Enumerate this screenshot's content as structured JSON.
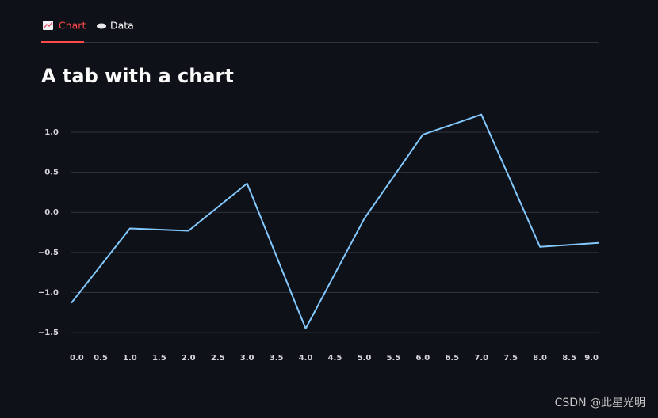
{
  "tabs": [
    "Chart",
    "Data"
  ],
  "chart_data": {
    "type": "line",
    "title": "A tab with a chart",
    "x": [
      0,
      1,
      2,
      3,
      4,
      5,
      6,
      7,
      8,
      9
    ],
    "values": [
      -1.13,
      -0.2,
      -0.23,
      0.36,
      -1.45,
      -0.08,
      0.97,
      1.22,
      -0.43,
      -0.38
    ],
    "color": "#83c9ff",
    "xlim": [
      0,
      9
    ],
    "xticks": [
      {
        "value": 0,
        "label": "0.0"
      },
      0.5,
      {
        "value": 1,
        "label": "1.0"
      },
      1.5,
      {
        "value": 2,
        "label": "2.0"
      },
      2.5,
      {
        "value": 3,
        "label": "3.0"
      },
      3.5,
      {
        "value": 4,
        "label": "4.0"
      },
      4.5,
      {
        "value": 5,
        "label": "5.0"
      },
      5.5,
      {
        "value": 6,
        "label": "6.0"
      },
      6.5,
      {
        "value": 7,
        "label": "7.0"
      },
      7.5,
      {
        "value": 8,
        "label": "8.0"
      },
      8.5,
      {
        "value": 9,
        "label": "9.0"
      }
    ],
    "ylim": [
      -1.6,
      1.3
    ],
    "yticks": [
      {
        "value": -1.5,
        "label": "−1.5"
      },
      {
        "value": -1,
        "label": "−1.0"
      },
      {
        "value": -0.5,
        "label": "−0.5"
      },
      {
        "value": 0,
        "label": "0.0"
      },
      0.5,
      {
        "value": 1,
        "label": "1.0"
      }
    ],
    "grid": true
  },
  "watermark": "CSDN @此星光明"
}
